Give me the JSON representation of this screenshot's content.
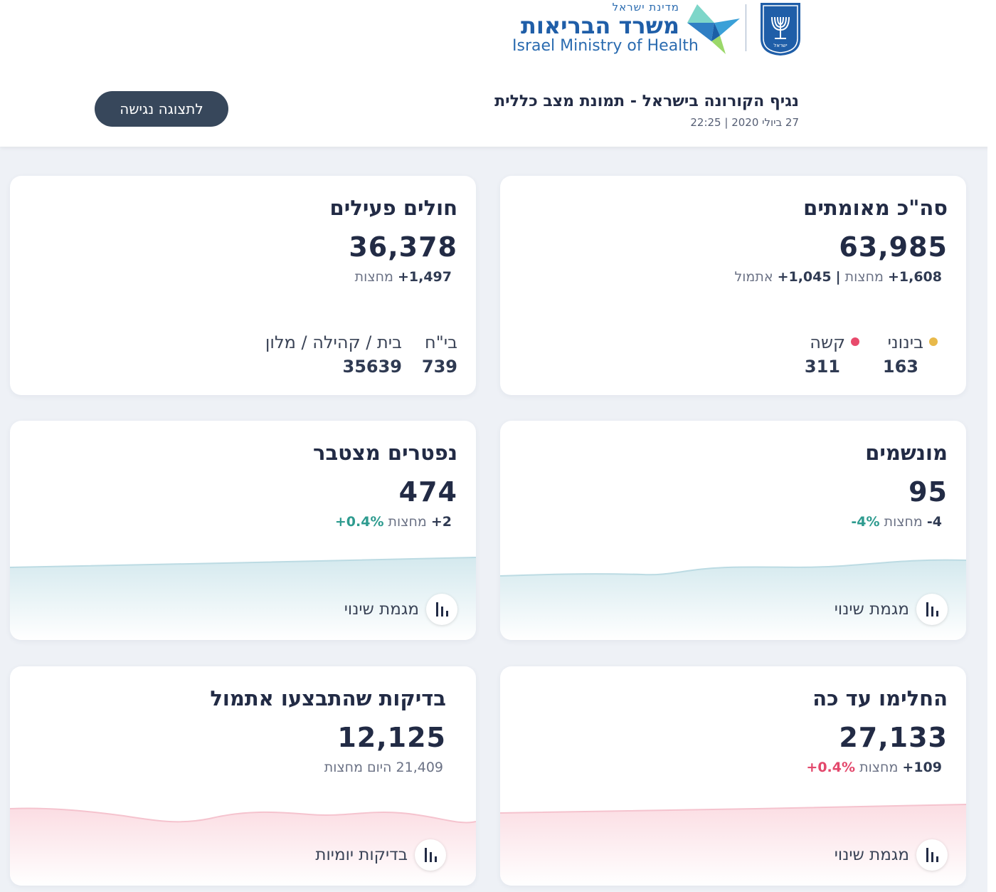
{
  "header": {
    "logo_state": "מדינת ישראל",
    "logo_ministry": "משרד הבריאות",
    "logo_english": "Israel Ministry of Health",
    "emblem_text": "ישראל",
    "title": "נגיף הקורונה בישראל - תמונת מצב כללית",
    "date": "27 ביולי 2020 | 22:25",
    "accessible_button": "לתצוגה נגישה"
  },
  "colors": {
    "accent_dark": "#37475b",
    "green": "#2e9b8f",
    "red": "#e3486c",
    "dot_moderate": "#e8b94a",
    "dot_severe": "#e84a6c"
  },
  "cards": {
    "confirmed": {
      "title": "סה\"כ מאומתים",
      "value": "63,985",
      "after_midnight": "+1,608",
      "after_midnight_label": "מחצות",
      "separator": "|",
      "yesterday": "+1,045",
      "yesterday_label": "אתמול",
      "moderate_label": "בינוני",
      "moderate_value": "163",
      "severe_label": "קשה",
      "severe_value": "311"
    },
    "active": {
      "title": "חולים פעילים",
      "value": "36,378",
      "after_midnight": "+1,497",
      "after_midnight_label": "מחצות",
      "hospital_label": "בי\"ח",
      "hospital_value": "739",
      "home_label": "בית / קהילה / מלון",
      "home_value": "35639"
    },
    "ventilated": {
      "title": "מונשמים",
      "value": "95",
      "change": "-4",
      "change_label": "מחצות",
      "pct": "-4%",
      "link_label": "מגמת שינוי",
      "link_icon": "bar-chart-icon"
    },
    "deceased": {
      "title": "נפטרים מצטבר",
      "value": "474",
      "change": "+2",
      "change_label": "מחצות",
      "pct": "+0.4%",
      "link_label": "מגמת שינוי",
      "link_icon": "bar-chart-icon"
    },
    "recovered": {
      "title": "החלימו עד כה",
      "value": "27,133",
      "change": "+109",
      "change_label": "מחצות",
      "pct": "+0.4%",
      "link_label": "מגמת שינוי",
      "link_icon": "bar-chart-icon"
    },
    "tests": {
      "title": "בדיקות שהתבצעו אתמול",
      "value": "12,125",
      "today": "21,409",
      "today_label": "היום מחצות",
      "link_label": "בדיקות יומיות",
      "link_icon": "bar-chart-icon"
    }
  }
}
